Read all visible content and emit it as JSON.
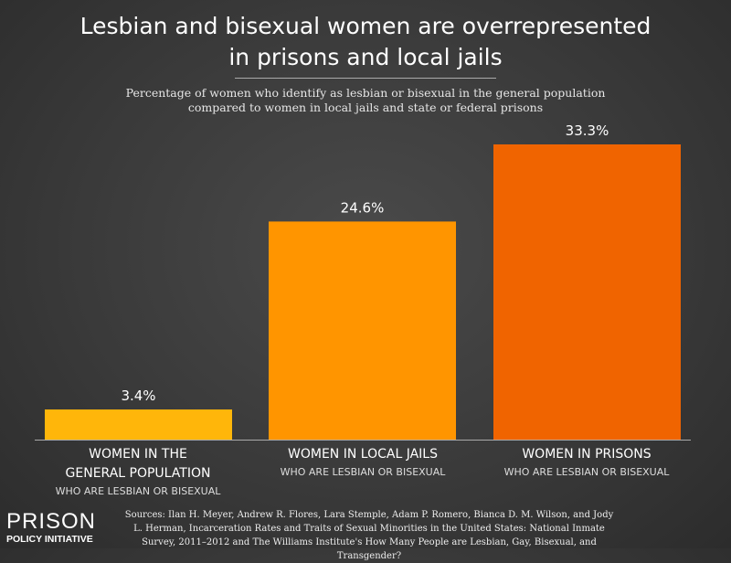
{
  "chart_data": {
    "type": "bar",
    "title": "Lesbian and bisexual women are overrepresented in prisons and local jails",
    "subtitle": "Percentage of women who identify as lesbian or bisexual in the general population compared to women in local jails and state or federal prisons",
    "categories": [
      "WOMEN IN THE GENERAL POPULATION",
      "WOMEN IN LOCAL JAILS",
      "WOMEN IN PRISONS"
    ],
    "category_sublabel": "WHO ARE LESBIAN OR BISEXUAL",
    "values": [
      3.4,
      24.6,
      33.3
    ],
    "data_labels": [
      "3.4%",
      "24.6%",
      "33.3%"
    ],
    "colors": [
      "#ffb60a",
      "#ff9500",
      "#f06400"
    ],
    "ylim": [
      0,
      33.3
    ],
    "grid": false,
    "xlabel": "",
    "ylabel": ""
  },
  "title_lines": [
    "Lesbian and bisexual women are overrepresented",
    "in prisons and local jails"
  ],
  "subtitle_lines": [
    "Percentage of women who identify as lesbian or bisexual in the general population",
    "compared to women in local jails and state or federal prisons"
  ],
  "category_lines": [
    [
      "WOMEN IN THE",
      "GENERAL POPULATION"
    ],
    [
      "WOMEN IN LOCAL JAILS"
    ],
    [
      "WOMEN IN PRISONS"
    ]
  ],
  "logo": {
    "line1": "PRISON",
    "line2": "POLICY INITIATIVE"
  },
  "sources": "Sources: Ilan H. Meyer, Andrew R. Flores, Lara Stemple, Adam P. Romero, Bianca D. M. Wilson, and Jody L. Herman, Incarceration Rates and Traits of Sexual Minorities in the United States: National Inmate Survey, 2011–2012 and The Williams Institute's How Many People are Lesbian, Gay, Bisexual, and Transgender?"
}
